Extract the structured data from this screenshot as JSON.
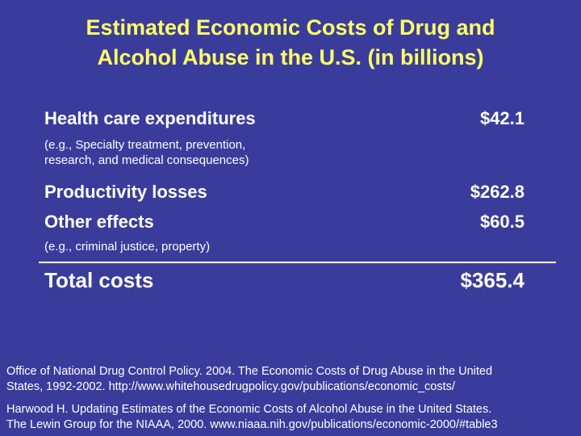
{
  "title_line1": "Estimated Economic Costs of Drug and",
  "title_line2": "Alcohol Abuse in the U.S. (in billions)",
  "rows": [
    {
      "label": "Health care expenditures",
      "value": "$42.1",
      "note_line1": "(e.g., Specialty treatment, prevention,",
      "note_line2": "research, and medical consequences)"
    },
    {
      "label": "Productivity losses",
      "value": "$262.8"
    },
    {
      "label": "Other effects",
      "value": "$60.5",
      "note_line1": "(e.g., criminal justice, property)"
    }
  ],
  "total": {
    "label": "Total costs",
    "value": "$365.4"
  },
  "references": [
    {
      "line1": "Office of National Drug Control Policy. 2004. The Economic Costs of Drug Abuse in the United",
      "line2": "States, 1992-2002. http://www.whitehousedrugpolicy.gov/publications/economic_costs/"
    },
    {
      "line1": "Harwood H. Updating Estimates of the Economic Costs of Alcohol Abuse in the United States.",
      "line2": "The Lewin Group for the NIAAA, 2000. www.niaaa.nih.gov/publications/economic-2000/#table3"
    }
  ],
  "colors": {
    "background": "#3a3c9c",
    "title": "#ffff66",
    "text": "#ffffff"
  }
}
